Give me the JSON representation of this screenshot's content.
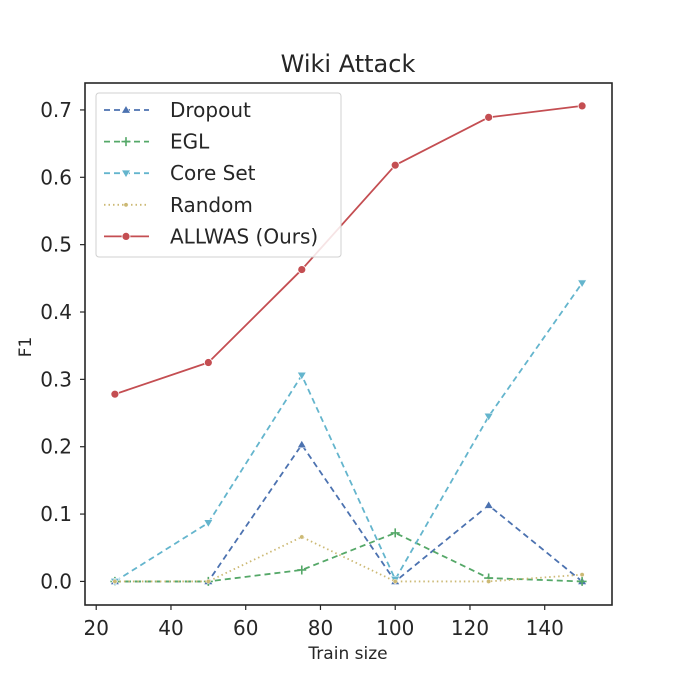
{
  "chart_data": {
    "type": "line",
    "title": "Wiki Attack",
    "xlabel": "Train size",
    "ylabel": "F1",
    "xlim": [
      17,
      158
    ],
    "ylim": [
      -0.035,
      0.74
    ],
    "xticks": [
      20,
      40,
      60,
      80,
      100,
      120,
      140
    ],
    "yticks": [
      0.0,
      0.1,
      0.2,
      0.3,
      0.4,
      0.5,
      0.6,
      0.7
    ],
    "ytick_labels": [
      "0.0",
      "0.1",
      "0.2",
      "0.3",
      "0.4",
      "0.5",
      "0.6",
      "0.7"
    ],
    "grid": false,
    "legend_position": "top-left",
    "x": [
      25,
      50,
      75,
      100,
      125,
      150
    ],
    "series": [
      {
        "name": "Dropout",
        "values": [
          0.0,
          0.0,
          0.203,
          0.0,
          0.113,
          0.0
        ],
        "color": "#4c72b0",
        "style": "dashed",
        "marker": "triangle-up"
      },
      {
        "name": "EGL",
        "values": [
          0.0,
          0.0,
          0.017,
          0.072,
          0.005,
          0.0
        ],
        "color": "#55a868",
        "style": "dashed",
        "marker": "plus"
      },
      {
        "name": "Core Set",
        "values": [
          0.0,
          0.087,
          0.306,
          0.003,
          0.245,
          0.443
        ],
        "color": "#64b5cd",
        "style": "dashed",
        "marker": "triangle-down"
      },
      {
        "name": "Random",
        "values": [
          0.0,
          0.0,
          0.066,
          0.0,
          0.0,
          0.01
        ],
        "color": "#dd8452",
        "style": "dotted",
        "marker": "small-dot",
        "display_color": "#ccb974"
      },
      {
        "name": "ALLWAS (Ours)",
        "values": [
          0.278,
          0.325,
          0.463,
          0.618,
          0.689,
          0.706
        ],
        "color": "#c44e52",
        "style": "solid",
        "marker": "circle"
      }
    ]
  }
}
